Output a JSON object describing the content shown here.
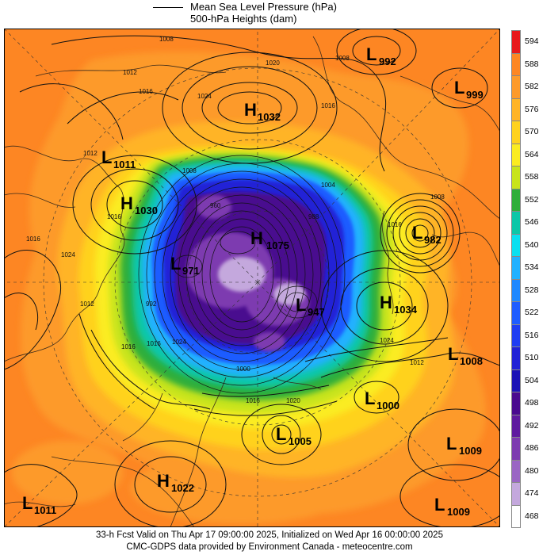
{
  "legend": {
    "line1": "Mean Sea Level Pressure (hPa)",
    "line2": "500-hPa Heights (dam)"
  },
  "colorbar": {
    "labels": [
      "594",
      "588",
      "582",
      "576",
      "570",
      "564",
      "558",
      "552",
      "546",
      "540",
      "534",
      "528",
      "522",
      "516",
      "510",
      "504",
      "498",
      "492",
      "486",
      "480",
      "474",
      "468"
    ],
    "colors": [
      "#e8191c",
      "#fd8623",
      "#fd9a2b",
      "#ffb428",
      "#ffd21e",
      "#fbec21",
      "#c8e41b",
      "#2eae3a",
      "#0cc7a8",
      "#0ae0f0",
      "#21b1ff",
      "#1e88ff",
      "#1e5cff",
      "#1f3df2",
      "#2121d6",
      "#1c12b6",
      "#4a0a8f",
      "#5f1a9f",
      "#7d3bb0",
      "#9a66c4",
      "#c4a8dd",
      "#ffffff"
    ]
  },
  "pressure_centers": [
    {
      "type": "L",
      "value": "992"
    },
    {
      "type": "L",
      "value": "999"
    },
    {
      "type": "H",
      "value": "1032"
    },
    {
      "type": "L",
      "value": "1011"
    },
    {
      "type": "H",
      "value": "1030"
    },
    {
      "type": "H",
      "value": "1075"
    },
    {
      "type": "L",
      "value": "982"
    },
    {
      "type": "L",
      "value": "971"
    },
    {
      "type": "H",
      "value": "1034"
    },
    {
      "type": "L",
      "value": "947"
    },
    {
      "type": "L",
      "value": "1008"
    },
    {
      "type": "L",
      "value": "1000"
    },
    {
      "type": "L",
      "value": "1005"
    },
    {
      "type": "L",
      "value": "1009"
    },
    {
      "type": "H",
      "value": "1022"
    },
    {
      "type": "L",
      "value": "1011"
    },
    {
      "type": "L",
      "value": "1009"
    }
  ],
  "isobar_labels": [
    "1008",
    "1012",
    "1016",
    "1020",
    "1024",
    "1016",
    "1012",
    "1008",
    "1024",
    "1016",
    "1024",
    "1016",
    "1004",
    "1008",
    "992",
    "988",
    "960",
    "1000",
    "1016",
    "1016",
    "1008",
    "1020",
    "1016",
    "1024",
    "1016",
    "1012",
    "1012"
  ],
  "footer": {
    "line1": "33-h Fcst Valid on Thu Apr 17 09:00:00 2025, Initialized on Wed Apr 16 00:00:00 2025",
    "line2": "CMC-GDPS data provided by Environment Canada - meteocentre.com"
  }
}
